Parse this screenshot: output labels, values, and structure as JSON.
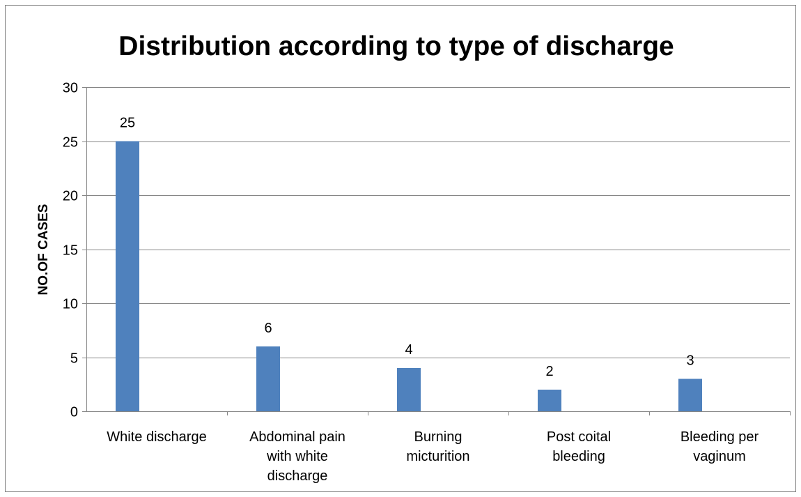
{
  "chart_data": {
    "type": "bar",
    "title": "Distribution according to type of discharge",
    "xlabel": "",
    "ylabel": "NO.OF CASES",
    "categories": [
      [
        "White discharge"
      ],
      [
        "Abdominal pain",
        "with white",
        "discharge"
      ],
      [
        "Burning",
        "micturition"
      ],
      [
        "Post coital",
        "bleeding"
      ],
      [
        "Bleeding per",
        "vaginum"
      ]
    ],
    "values": [
      25,
      6,
      4,
      2,
      3
    ],
    "data_labels": [
      "25",
      "6",
      "4",
      "2",
      "3"
    ],
    "ylim": [
      0,
      30
    ],
    "yticks": [
      0,
      5,
      10,
      15,
      20,
      25,
      30
    ],
    "grid": true,
    "legend": "none",
    "colors": {
      "bar": "#4f81bd",
      "grid": "#868686",
      "axis": "#868686",
      "frame": "#7f7f7f"
    }
  }
}
